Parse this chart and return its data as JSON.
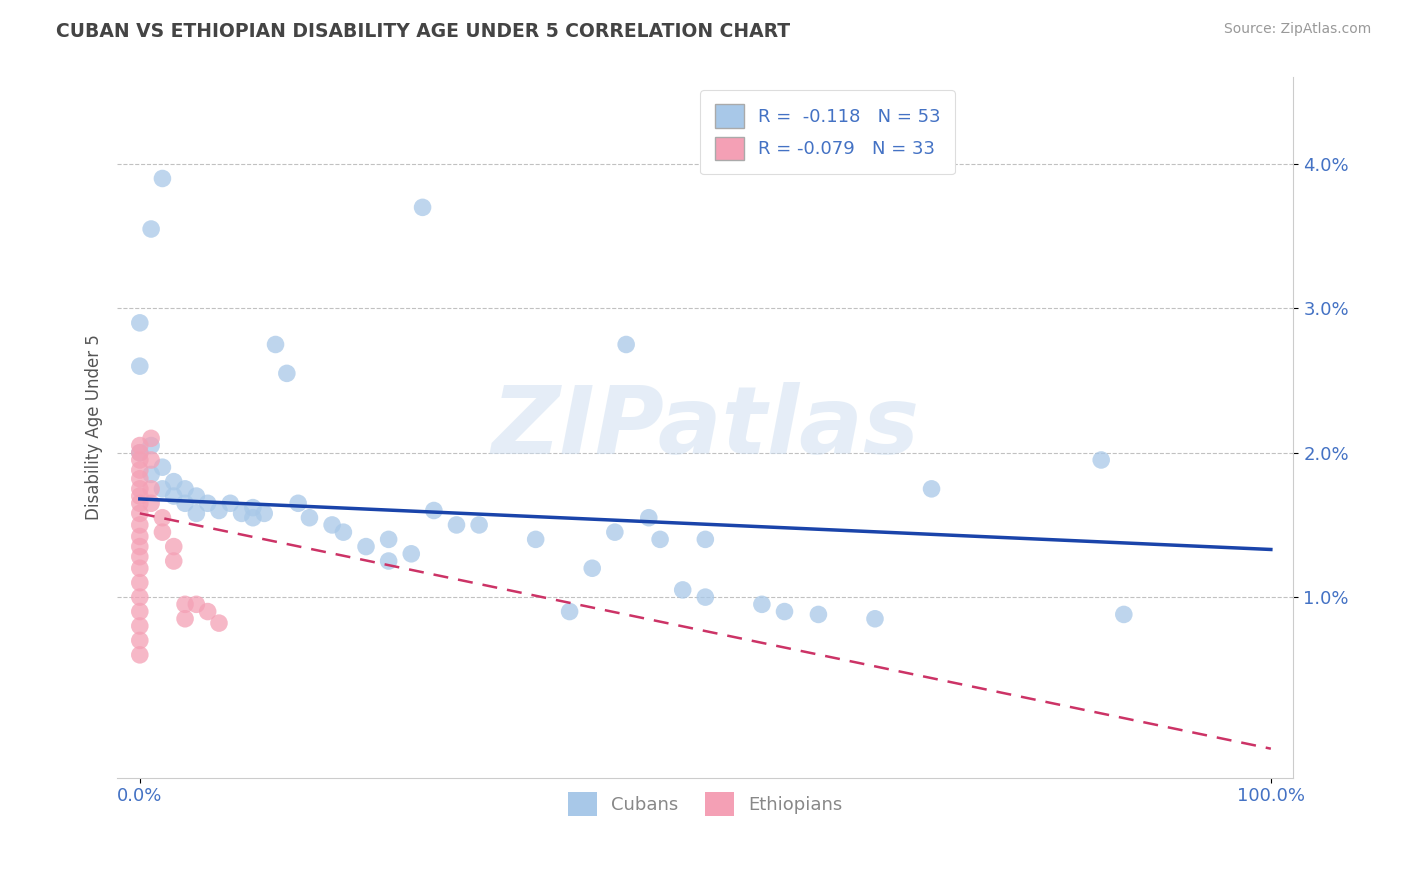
{
  "title": "CUBAN VS ETHIOPIAN DISABILITY AGE UNDER 5 CORRELATION CHART",
  "source": "Source: ZipAtlas.com",
  "ylabel": "Disability Age Under 5",
  "watermark": "ZIPatlas",
  "cuban_R": -0.118,
  "cuban_N": 53,
  "ethiopian_R": -0.079,
  "ethiopian_N": 33,
  "cuban_color": "#a8c8e8",
  "ethiopian_color": "#f4a0b5",
  "cuban_line_color": "#1a44aa",
  "ethiopian_line_color": "#cc3366",
  "y_ticks": [
    0.01,
    0.02,
    0.03,
    0.04
  ],
  "y_tick_labels": [
    "1.0%",
    "2.0%",
    "3.0%",
    "4.0%"
  ],
  "x_ticks": [
    0.0,
    1.0
  ],
  "x_tick_labels": [
    "0.0%",
    "100.0%"
  ],
  "xlim": [
    -0.02,
    1.02
  ],
  "ylim": [
    -0.0025,
    0.046
  ],
  "background_color": "#ffffff",
  "cubans_scatter": [
    [
      0.02,
      0.039
    ],
    [
      0.01,
      0.0355
    ],
    [
      0.25,
      0.037
    ],
    [
      0.43,
      0.0275
    ],
    [
      0.0,
      0.029
    ],
    [
      0.0,
      0.026
    ],
    [
      0.12,
      0.0275
    ],
    [
      0.13,
      0.0255
    ],
    [
      0.0,
      0.02
    ],
    [
      0.01,
      0.0205
    ],
    [
      0.01,
      0.0185
    ],
    [
      0.02,
      0.019
    ],
    [
      0.02,
      0.0175
    ],
    [
      0.03,
      0.018
    ],
    [
      0.03,
      0.017
    ],
    [
      0.04,
      0.0175
    ],
    [
      0.04,
      0.0165
    ],
    [
      0.05,
      0.017
    ],
    [
      0.05,
      0.0158
    ],
    [
      0.06,
      0.0165
    ],
    [
      0.07,
      0.016
    ],
    [
      0.08,
      0.0165
    ],
    [
      0.09,
      0.0158
    ],
    [
      0.1,
      0.0162
    ],
    [
      0.1,
      0.0155
    ],
    [
      0.11,
      0.0158
    ],
    [
      0.14,
      0.0165
    ],
    [
      0.15,
      0.0155
    ],
    [
      0.17,
      0.015
    ],
    [
      0.18,
      0.0145
    ],
    [
      0.2,
      0.0135
    ],
    [
      0.22,
      0.014
    ],
    [
      0.22,
      0.0125
    ],
    [
      0.24,
      0.013
    ],
    [
      0.26,
      0.016
    ],
    [
      0.28,
      0.015
    ],
    [
      0.3,
      0.015
    ],
    [
      0.35,
      0.014
    ],
    [
      0.38,
      0.009
    ],
    [
      0.4,
      0.012
    ],
    [
      0.42,
      0.0145
    ],
    [
      0.45,
      0.0155
    ],
    [
      0.46,
      0.014
    ],
    [
      0.48,
      0.0105
    ],
    [
      0.5,
      0.014
    ],
    [
      0.5,
      0.01
    ],
    [
      0.55,
      0.0095
    ],
    [
      0.57,
      0.009
    ],
    [
      0.6,
      0.0088
    ],
    [
      0.65,
      0.0085
    ],
    [
      0.7,
      0.0175
    ],
    [
      0.85,
      0.0195
    ],
    [
      0.87,
      0.0088
    ]
  ],
  "ethiopians_scatter": [
    [
      0.0,
      0.0205
    ],
    [
      0.0,
      0.02
    ],
    [
      0.0,
      0.0195
    ],
    [
      0.0,
      0.0188
    ],
    [
      0.0,
      0.0182
    ],
    [
      0.0,
      0.0175
    ],
    [
      0.0,
      0.017
    ],
    [
      0.0,
      0.0165
    ],
    [
      0.0,
      0.0158
    ],
    [
      0.0,
      0.015
    ],
    [
      0.0,
      0.0142
    ],
    [
      0.0,
      0.0135
    ],
    [
      0.0,
      0.0128
    ],
    [
      0.0,
      0.012
    ],
    [
      0.0,
      0.011
    ],
    [
      0.0,
      0.01
    ],
    [
      0.0,
      0.009
    ],
    [
      0.0,
      0.008
    ],
    [
      0.0,
      0.007
    ],
    [
      0.0,
      0.006
    ],
    [
      0.01,
      0.021
    ],
    [
      0.01,
      0.0195
    ],
    [
      0.01,
      0.0175
    ],
    [
      0.01,
      0.0165
    ],
    [
      0.02,
      0.0155
    ],
    [
      0.02,
      0.0145
    ],
    [
      0.03,
      0.0135
    ],
    [
      0.03,
      0.0125
    ],
    [
      0.04,
      0.0095
    ],
    [
      0.04,
      0.0085
    ],
    [
      0.05,
      0.0095
    ],
    [
      0.06,
      0.009
    ],
    [
      0.07,
      0.0082
    ]
  ],
  "cuban_trend_x": [
    0.0,
    1.0
  ],
  "cuban_trend_y": [
    0.0168,
    0.0133
  ],
  "ethiopian_trend_x": [
    0.0,
    1.0
  ],
  "ethiopian_trend_y": [
    0.0158,
    -0.0005
  ]
}
